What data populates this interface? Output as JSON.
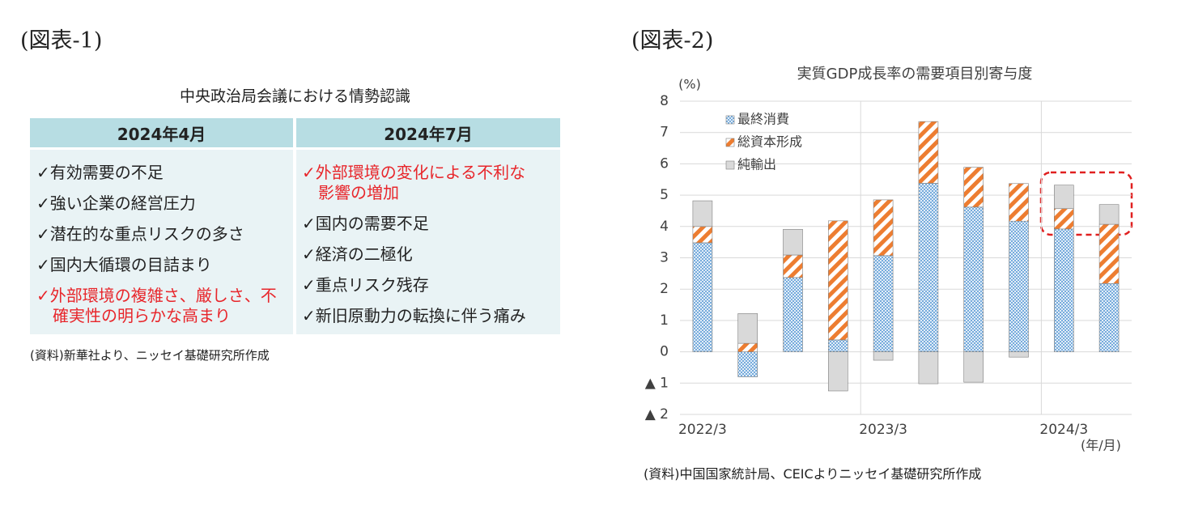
{
  "figure1": {
    "label": "(図表-1)",
    "title": "中央政治局会議における情勢認識",
    "table": {
      "header": [
        "2024年4月",
        "2024年7月"
      ],
      "columns": [
        [
          {
            "text": "✓有効需要の不足",
            "color": "#222222"
          },
          {
            "text": "✓強い企業の経営圧力",
            "color": "#222222"
          },
          {
            "text": "✓潜在的な重点リスクの多さ",
            "color": "#222222"
          },
          {
            "text": "✓国内大循環の目詰まり",
            "color": "#222222"
          },
          {
            "text": "✓外部環境の複雑さ、厳しさ、不確実性の明らかな高まり",
            "color": "#e8262b"
          }
        ],
        [
          {
            "text": "✓外部環境の変化による不利な影響の増加",
            "color": "#e8262b"
          },
          {
            "text": "✓国内の需要不足",
            "color": "#222222"
          },
          {
            "text": "✓経済の二極化",
            "color": "#222222"
          },
          {
            "text": "✓重点リスク残存",
            "color": "#222222"
          },
          {
            "text": "✓新旧原動力の転換に伴う痛み",
            "color": "#222222"
          }
        ]
      ]
    },
    "source": "(資料)新華社より、ニッセイ基礎研究所作成"
  },
  "figure2": {
    "label": "(図表-2)",
    "source": "(資料)中国国家統計局、CEICよりニッセイ基礎研究所作成"
  },
  "chart_data": {
    "type": "bar",
    "stacked": true,
    "title": "実質GDP成長率の需要項目別寄与度",
    "y_label": "(%)",
    "x_label": "(年/月)",
    "categories": [
      "2022/3",
      null,
      null,
      null,
      "2023/3",
      null,
      null,
      null,
      "2024/3",
      null
    ],
    "series": [
      {
        "name": "最終消費",
        "color": "#5b9bd5",
        "pattern": "dots",
        "values": [
          3.48,
          -0.8,
          2.37,
          0.38,
          3.07,
          5.38,
          4.62,
          4.17,
          3.92,
          2.18
        ]
      },
      {
        "name": "総資本形成",
        "color": "#ed7d31",
        "pattern": "stripes",
        "values": [
          0.52,
          0.27,
          0.72,
          3.8,
          1.78,
          1.97,
          1.27,
          1.2,
          0.65,
          1.89
        ]
      },
      {
        "name": "純輸出",
        "color": "#d9d9d9",
        "pattern": "solid",
        "values": [
          0.82,
          0.95,
          0.82,
          -1.25,
          -0.27,
          -1.02,
          -0.97,
          -0.17,
          0.75,
          0.63
        ]
      }
    ],
    "ylim": [
      -2,
      8
    ],
    "yticks": [
      {
        "value": -2,
        "label": "▲ 2"
      },
      {
        "value": -1,
        "label": "▲ 1"
      },
      0,
      1,
      2,
      3,
      4,
      5,
      6,
      7,
      8
    ],
    "grid": true,
    "legend": "upper left"
  }
}
